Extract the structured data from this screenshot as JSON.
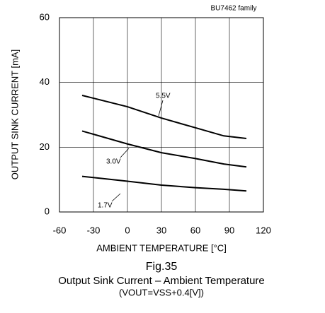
{
  "chart_data": {
    "type": "line",
    "title": "Fig.35",
    "subtitle": "Output Sink Current – Ambient Temperature",
    "note": "(VOUT=VSS+0.4[V])",
    "annotation": "BU7462 family",
    "x_label": "AMBIENT TEMPERATURE [°C]",
    "y_label": "OUTPUT SINK CURRENT [mA]",
    "x": [
      -40,
      0,
      30,
      60,
      85,
      105
    ],
    "series": [
      {
        "name": "5.5V",
        "color": "#000000",
        "values": [
          36,
          32.5,
          29,
          26,
          23.5,
          22.7
        ]
      },
      {
        "name": "3.0V",
        "color": "#000000",
        "values": [
          25,
          21,
          18.3,
          16.5,
          14.8,
          13.9
        ]
      },
      {
        "name": "1.7V",
        "color": "#000000",
        "values": [
          11,
          9.5,
          8.3,
          7.5,
          7,
          6.5
        ]
      }
    ],
    "xlim": [
      -60,
      120
    ],
    "xticks": [
      -60,
      -30,
      0,
      30,
      60,
      90,
      120
    ],
    "ylim": [
      0,
      60
    ],
    "yticks": [
      0,
      20,
      40,
      60
    ],
    "grid": true
  }
}
